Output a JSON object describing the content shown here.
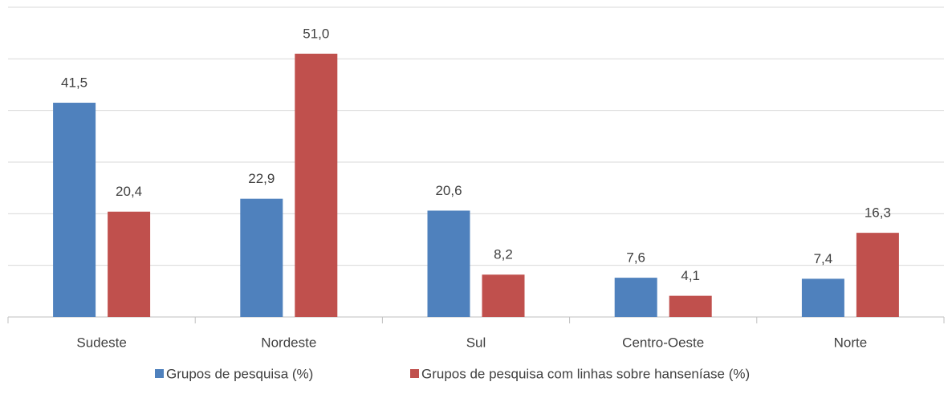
{
  "chart_data": {
    "type": "bar",
    "categories": [
      "Sudeste",
      "Nordeste",
      "Sul",
      "Centro-Oeste",
      "Norte"
    ],
    "series": [
      {
        "name": "Grupos de pesquisa (%)",
        "color": "#4f81bd",
        "values": [
          41.5,
          22.9,
          20.6,
          7.6,
          7.4
        ],
        "value_labels": [
          "41,5",
          "22,9",
          "20,6",
          "7,6",
          "7,4"
        ]
      },
      {
        "name": "Grupos de pesquisa com linhas sobre hanseníase (%)",
        "color": "#c0504d",
        "values": [
          20.4,
          51.0,
          8.2,
          4.1,
          16.3
        ],
        "value_labels": [
          "20,4",
          "51,0",
          "8,2",
          "4,1",
          "16,3"
        ]
      }
    ],
    "ylim": [
      0,
      60
    ],
    "yticks": [
      0,
      10,
      20,
      30,
      40,
      50,
      60
    ],
    "grid": true,
    "legend": "bottom"
  }
}
